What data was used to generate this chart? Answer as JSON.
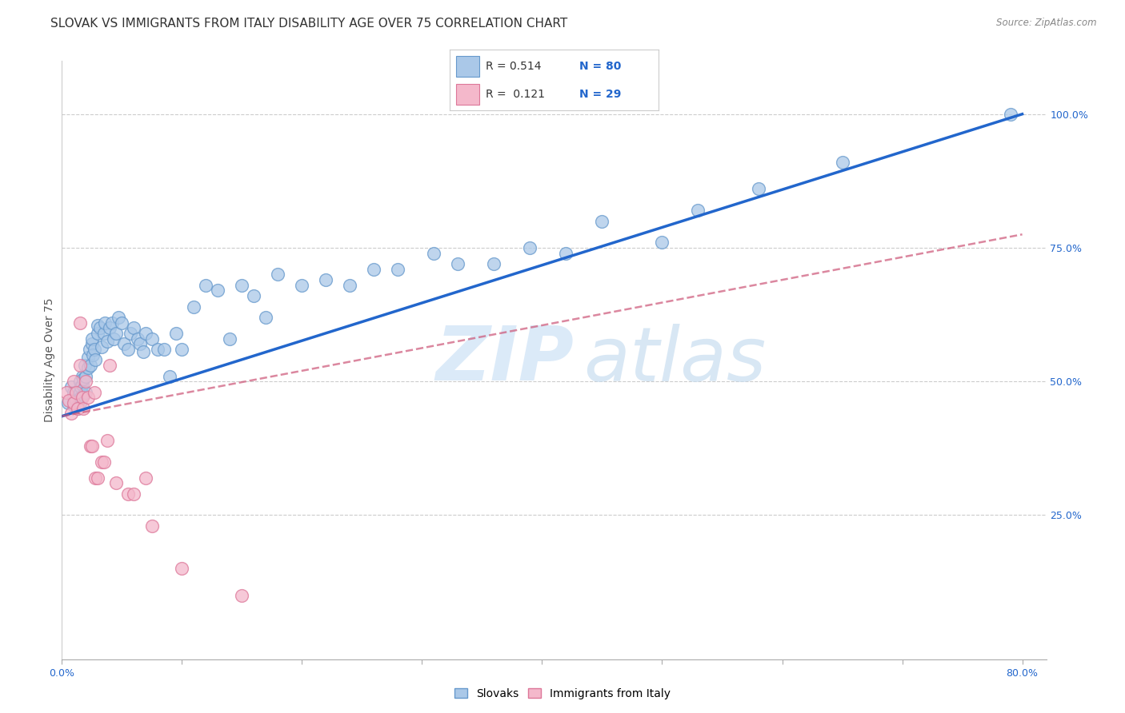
{
  "title": "SLOVAK VS IMMIGRANTS FROM ITALY DISABILITY AGE OVER 75 CORRELATION CHART",
  "source": "Source: ZipAtlas.com",
  "ylabel": "Disability Age Over 75",
  "xlim": [
    0.0,
    0.82
  ],
  "ylim": [
    -0.02,
    1.1
  ],
  "ytick_positions": [
    0.25,
    0.5,
    0.75,
    1.0
  ],
  "ytick_labels": [
    "25.0%",
    "50.0%",
    "75.0%",
    "100.0%"
  ],
  "blue_line": {
    "x0": 0.0,
    "y0": 0.435,
    "x1": 0.8,
    "y1": 1.0
  },
  "pink_line": {
    "x0": 0.0,
    "y0": 0.435,
    "x1": 0.8,
    "y1": 0.775
  },
  "blue_color": "#aac8e8",
  "blue_edge_color": "#6699cc",
  "pink_color": "#f4b8cb",
  "pink_edge_color": "#dd7799",
  "blue_line_color": "#2266cc",
  "pink_line_color": "#cc5577",
  "legend_r1": "R = 0.514",
  "legend_n1": "N = 80",
  "legend_r2": "R =  0.121",
  "legend_n2": "N = 29",
  "watermark_zip": "ZIP",
  "watermark_atlas": "atlas",
  "blue_scatter_x": [
    0.005,
    0.008,
    0.01,
    0.01,
    0.01,
    0.012,
    0.013,
    0.013,
    0.015,
    0.015,
    0.015,
    0.016,
    0.016,
    0.017,
    0.017,
    0.018,
    0.018,
    0.019,
    0.02,
    0.02,
    0.022,
    0.022,
    0.023,
    0.024,
    0.025,
    0.025,
    0.026,
    0.027,
    0.028,
    0.03,
    0.03,
    0.032,
    0.033,
    0.035,
    0.036,
    0.038,
    0.04,
    0.042,
    0.043,
    0.045,
    0.047,
    0.05,
    0.052,
    0.055,
    0.057,
    0.06,
    0.063,
    0.065,
    0.068,
    0.07,
    0.075,
    0.08,
    0.085,
    0.09,
    0.095,
    0.1,
    0.11,
    0.12,
    0.13,
    0.14,
    0.15,
    0.16,
    0.17,
    0.18,
    0.2,
    0.22,
    0.24,
    0.26,
    0.28,
    0.31,
    0.33,
    0.36,
    0.39,
    0.42,
    0.45,
    0.5,
    0.53,
    0.58,
    0.65,
    0.79
  ],
  "blue_scatter_y": [
    0.46,
    0.49,
    0.455,
    0.47,
    0.48,
    0.465,
    0.455,
    0.45,
    0.46,
    0.48,
    0.5,
    0.47,
    0.49,
    0.51,
    0.495,
    0.475,
    0.505,
    0.53,
    0.51,
    0.48,
    0.525,
    0.545,
    0.56,
    0.53,
    0.57,
    0.58,
    0.55,
    0.56,
    0.54,
    0.59,
    0.605,
    0.6,
    0.565,
    0.59,
    0.61,
    0.575,
    0.6,
    0.61,
    0.58,
    0.59,
    0.62,
    0.61,
    0.57,
    0.56,
    0.59,
    0.6,
    0.58,
    0.57,
    0.555,
    0.59,
    0.58,
    0.56,
    0.56,
    0.51,
    0.59,
    0.56,
    0.64,
    0.68,
    0.67,
    0.58,
    0.68,
    0.66,
    0.62,
    0.7,
    0.68,
    0.69,
    0.68,
    0.71,
    0.71,
    0.74,
    0.72,
    0.72,
    0.75,
    0.74,
    0.8,
    0.76,
    0.82,
    0.86,
    0.91,
    1.0
  ],
  "pink_scatter_x": [
    0.004,
    0.006,
    0.008,
    0.01,
    0.01,
    0.012,
    0.013,
    0.015,
    0.015,
    0.017,
    0.018,
    0.02,
    0.022,
    0.024,
    0.025,
    0.027,
    0.028,
    0.03,
    0.033,
    0.035,
    0.038,
    0.04,
    0.045,
    0.055,
    0.06,
    0.07,
    0.075,
    0.1,
    0.15
  ],
  "pink_scatter_y": [
    0.48,
    0.465,
    0.44,
    0.46,
    0.5,
    0.48,
    0.45,
    0.53,
    0.61,
    0.47,
    0.45,
    0.5,
    0.47,
    0.38,
    0.38,
    0.48,
    0.32,
    0.32,
    0.35,
    0.35,
    0.39,
    0.53,
    0.31,
    0.29,
    0.29,
    0.32,
    0.23,
    0.15,
    0.1
  ],
  "title_fontsize": 11,
  "axis_label_fontsize": 10,
  "tick_fontsize": 9
}
